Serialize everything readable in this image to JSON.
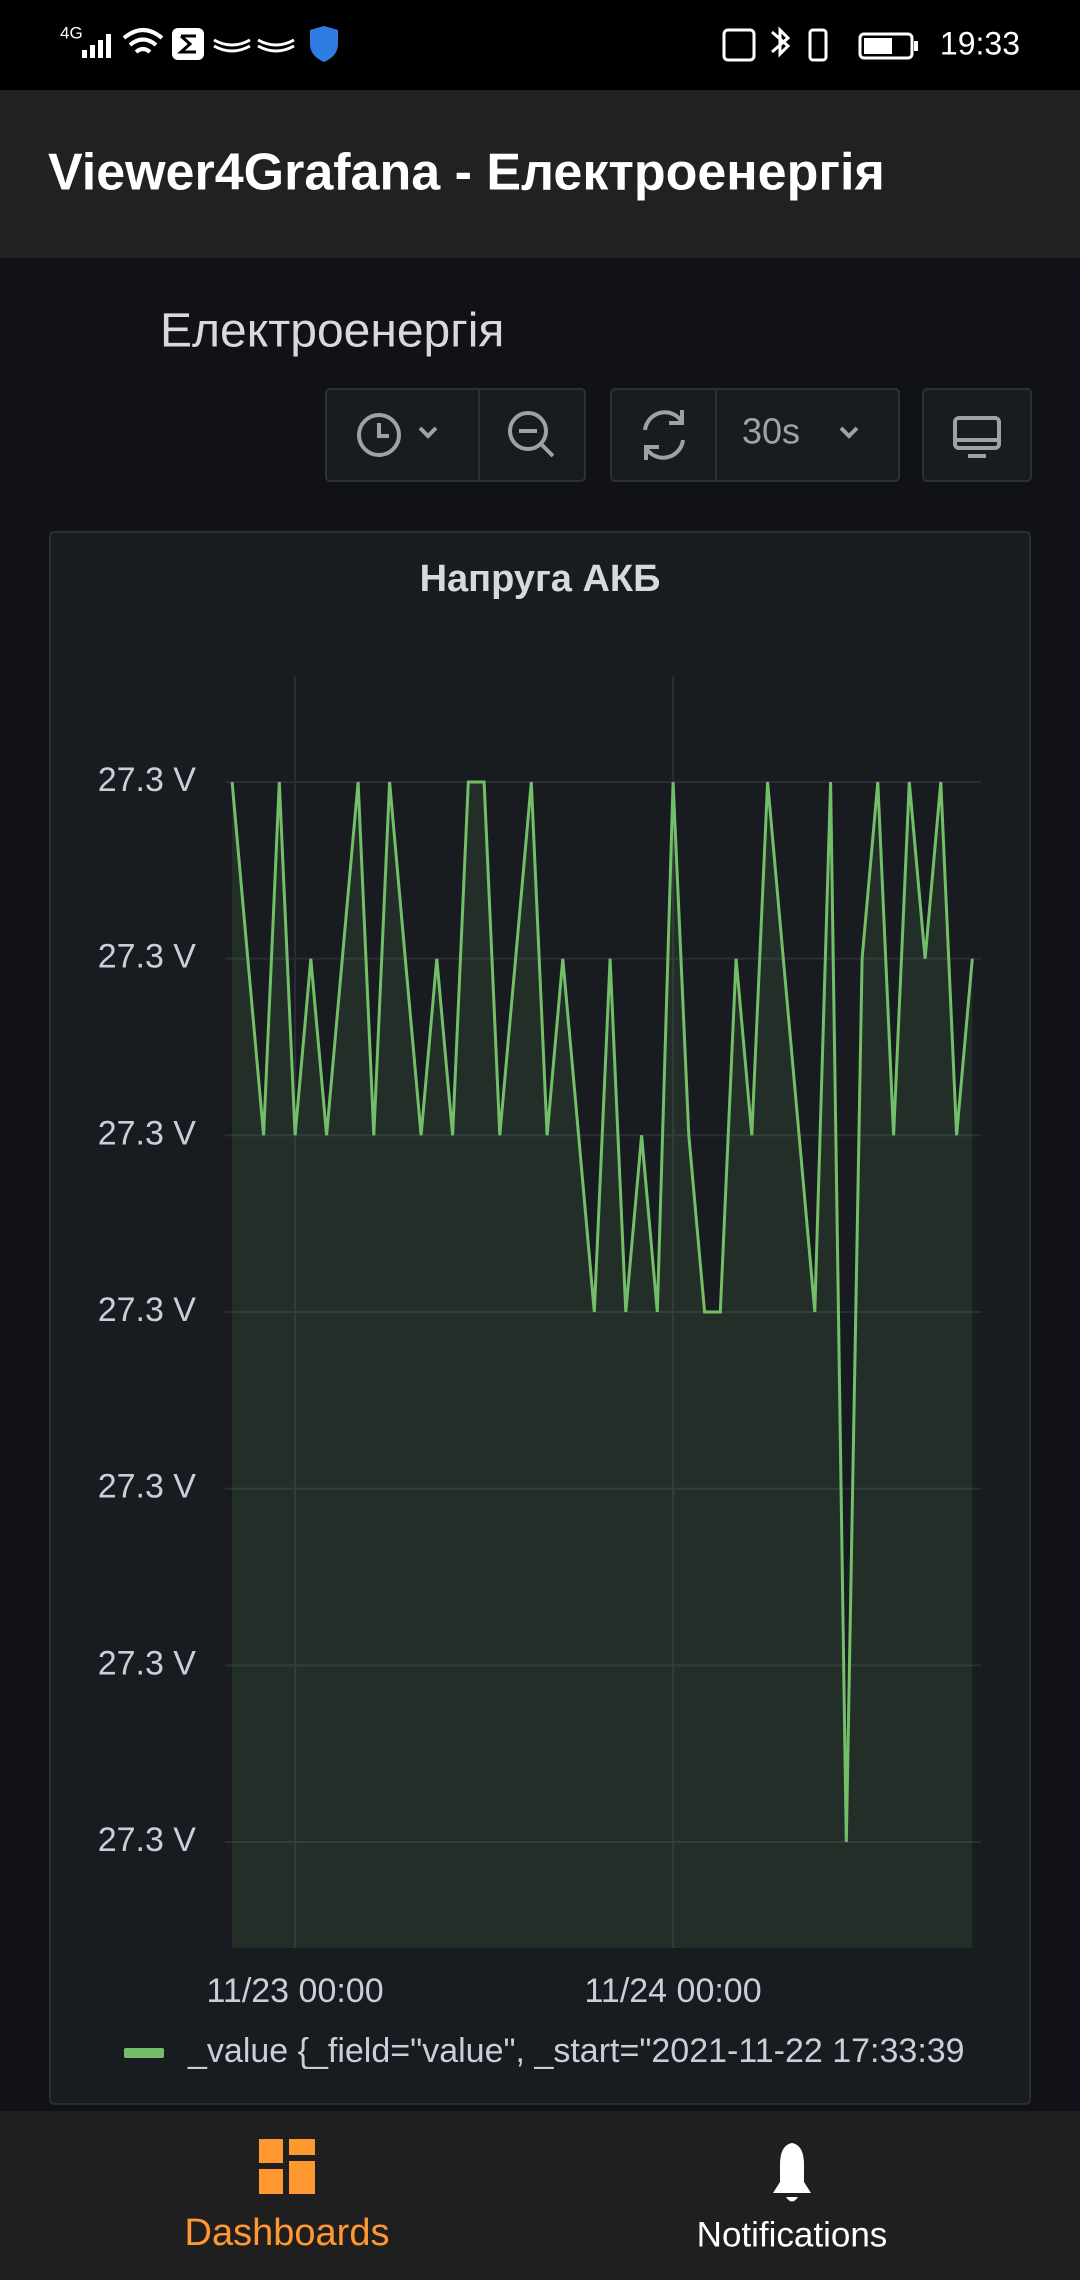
{
  "status_bar": {
    "network": "4G",
    "time": "19:33"
  },
  "app_bar": {
    "title": "Viewer4Grafana - Електроенергія"
  },
  "dashboard": {
    "title": "Електроенергія",
    "refresh_interval": "30s"
  },
  "chart_data": {
    "type": "line",
    "title": "Напруга АКБ",
    "x": [
      "11/22 20:00",
      "11/22 21:00",
      "11/22 22:00",
      "11/22 23:00",
      "11/23 00:00",
      "11/23 01:00",
      "11/23 02:00",
      "11/23 03:00",
      "11/23 04:00",
      "11/23 05:00",
      "11/23 06:00",
      "11/23 07:00",
      "11/23 08:00",
      "11/23 09:00",
      "11/23 10:00",
      "11/23 11:00",
      "11/23 12:00",
      "11/23 13:00",
      "11/23 14:00",
      "11/23 15:00",
      "11/23 16:00",
      "11/23 17:00",
      "11/23 18:00",
      "11/23 19:00",
      "11/23 20:00",
      "11/23 21:00",
      "11/23 22:00",
      "11/23 23:00",
      "11/24 00:00",
      "11/24 01:00",
      "11/24 02:00",
      "11/24 03:00",
      "11/24 04:00",
      "11/24 05:00",
      "11/24 06:00",
      "11/24 07:00",
      "11/24 08:00",
      "11/24 09:00",
      "11/24 10:00",
      "11/24 11:00",
      "11/24 12:00",
      "11/24 13:00",
      "11/24 14:00",
      "11/24 15:00",
      "11/24 16:00",
      "11/24 17:00",
      "11/24 18:00",
      "11/24 19:00"
    ],
    "series": [
      {
        "name": "_value {_field=\"value\", _start=\"2021-11-22 17:33:39",
        "color": "#73bf69",
        "values": [
          27.31,
          27.3,
          27.29,
          27.31,
          27.29,
          27.3,
          27.29,
          27.3,
          27.31,
          27.29,
          27.31,
          27.3,
          27.29,
          27.3,
          27.29,
          27.31,
          27.31,
          27.29,
          27.3,
          27.31,
          27.29,
          27.3,
          27.29,
          27.28,
          27.3,
          27.28,
          27.29,
          27.28,
          27.31,
          27.29,
          27.28,
          27.28,
          27.3,
          27.29,
          27.31,
          27.3,
          27.29,
          27.28,
          27.31,
          27.25,
          27.3,
          27.31,
          27.29,
          27.31,
          27.3,
          27.31,
          27.29,
          27.3
        ]
      }
    ],
    "xlim": [
      "11/22 19:33",
      "11/24 19:33"
    ],
    "xticks": [
      "11/23 00:00",
      "11/24 00:00"
    ],
    "ylim": [
      27.244,
      27.316
    ],
    "yticks": [
      {
        "value": 27.25,
        "label": "27.3 V"
      },
      {
        "value": 27.26,
        "label": "27.3 V"
      },
      {
        "value": 27.27,
        "label": "27.3 V"
      },
      {
        "value": 27.28,
        "label": "27.3 V"
      },
      {
        "value": 27.29,
        "label": "27.3 V"
      },
      {
        "value": 27.3,
        "label": "27.3 V"
      },
      {
        "value": 27.31,
        "label": "27.3 V"
      }
    ],
    "grid": true
  },
  "bottom_nav": {
    "items": [
      {
        "label": "Dashboards"
      },
      {
        "label": "Notifications"
      }
    ]
  }
}
